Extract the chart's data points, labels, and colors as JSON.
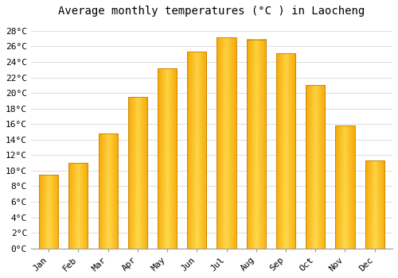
{
  "title": "Average monthly temperatures (°C ) in Laocheng",
  "months": [
    "Jan",
    "Feb",
    "Mar",
    "Apr",
    "May",
    "Jun",
    "Jul",
    "Aug",
    "Sep",
    "Oct",
    "Nov",
    "Dec"
  ],
  "values": [
    9.5,
    11.0,
    14.8,
    19.5,
    23.2,
    25.3,
    27.2,
    26.9,
    25.1,
    21.0,
    15.8,
    11.3
  ],
  "bar_color_center": "#FFD84D",
  "bar_color_edge": "#F5A800",
  "bar_edge_color": "#C88000",
  "ylim": [
    0,
    29
  ],
  "ytick_step": 2,
  "background_color": "#FFFFFF",
  "grid_color": "#DDDDDD",
  "title_fontsize": 10,
  "tick_fontsize": 8,
  "font_family": "monospace"
}
